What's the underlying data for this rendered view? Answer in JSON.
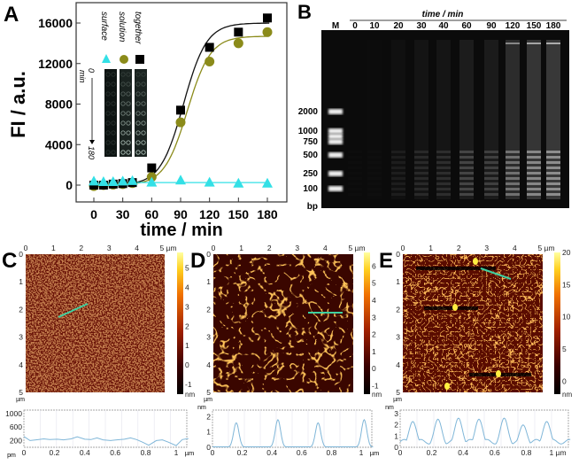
{
  "panel_labels": {
    "a": "A",
    "b": "B",
    "c": "C",
    "d": "D",
    "e": "E"
  },
  "colors": {
    "together": "#000000",
    "solution": "#8b8b1a",
    "surface": "#33e0e6",
    "profile_line": "#7fb6d8",
    "scan_line": "#3fd0a0"
  },
  "chart_data": [
    {
      "type": "scatter",
      "panel": "A",
      "xlabel": "time / min",
      "ylabel": "FI / a.u.",
      "xlim": [
        -10,
        195
      ],
      "ylim": [
        -1500,
        17500
      ],
      "xticks": [
        0,
        30,
        60,
        90,
        120,
        150,
        180
      ],
      "yticks": [
        0,
        4000,
        8000,
        12000,
        16000
      ],
      "legend_placement": "inset-top-left",
      "series": [
        {
          "name": "together",
          "marker": "square",
          "color": "#000000",
          "x": [
            0,
            10,
            20,
            30,
            40,
            60,
            90,
            120,
            150,
            180
          ],
          "y": [
            0,
            0,
            100,
            150,
            250,
            1700,
            7400,
            13600,
            15100,
            16500
          ],
          "fit": {
            "model": "sigmoid",
            "max": 16000,
            "mid": 93,
            "width": 12
          }
        },
        {
          "name": "solution",
          "marker": "circle",
          "color": "#8b8b1a",
          "x": [
            0,
            10,
            20,
            30,
            40,
            60,
            90,
            120,
            150,
            180
          ],
          "y": [
            -100,
            0,
            50,
            100,
            200,
            800,
            6200,
            12200,
            14000,
            15100
          ],
          "fit": {
            "model": "sigmoid",
            "max": 14700,
            "mid": 97,
            "width": 12
          }
        },
        {
          "name": "surface",
          "marker": "triangle",
          "color": "#33e0e6",
          "x": [
            0,
            10,
            20,
            30,
            40,
            60,
            90,
            120,
            150,
            180
          ],
          "y": [
            400,
            350,
            350,
            400,
            450,
            300,
            500,
            300,
            200,
            200
          ],
          "fit": {
            "model": "constant",
            "value": 250
          }
        }
      ],
      "inset": {
        "start_label": "0",
        "unit_label": "min",
        "end_label": "180"
      }
    },
    {
      "type": "gel",
      "panel": "B",
      "header": "time / min",
      "lanes": [
        "M",
        "0",
        "10",
        "20",
        "30",
        "40",
        "60",
        "90",
        "120",
        "150",
        "180"
      ],
      "lane_intensity": [
        1,
        0.02,
        0.03,
        0.12,
        0.2,
        0.22,
        0.38,
        0.35,
        0.7,
        0.9,
        0.95
      ],
      "ladder_labels": [
        "2000",
        "1000",
        "750",
        "500",
        "250",
        "100"
      ],
      "ladder_unit": "bp"
    },
    {
      "type": "heatmap",
      "panel": "C",
      "xticks": [
        "0",
        "1",
        "2",
        "3",
        "4",
        "5 µm"
      ],
      "yticks": [
        "0",
        "1",
        "2",
        "3",
        "4",
        "5"
      ],
      "yunit": "µm",
      "colorbar_ticks": [
        "5",
        "4",
        "3",
        "2",
        "1",
        "0",
        "-1"
      ],
      "colorbar_unit": "nm",
      "colorbar_range": [
        -1.5,
        5.8
      ],
      "profile": {
        "type": "line",
        "yunit": "pm",
        "yticks": [
          "1000",
          "600",
          "200"
        ],
        "ylim": [
          0,
          1000
        ],
        "xticks": [
          "0",
          "0.2",
          "0.4",
          "0.6",
          "0.8",
          "1"
        ],
        "xunit": "µm",
        "x": [
          0,
          0.04,
          0.08,
          0.13,
          0.17,
          0.22,
          0.26,
          0.31,
          0.35,
          0.4,
          0.44,
          0.48,
          0.52,
          0.57,
          0.61,
          0.66,
          0.7,
          0.74,
          0.78,
          0.82,
          0.87,
          0.91,
          0.95,
          1.0,
          1.04,
          1.08
        ],
        "y": [
          320,
          200,
          220,
          250,
          230,
          240,
          220,
          250,
          310,
          240,
          230,
          280,
          220,
          200,
          220,
          240,
          280,
          230,
          150,
          60,
          200,
          220,
          150,
          50,
          230,
          260
        ]
      }
    },
    {
      "type": "heatmap",
      "panel": "D",
      "xticks": [
        "0",
        "1",
        "2",
        "3",
        "4",
        "5 µm"
      ],
      "yticks": [
        "0",
        "1",
        "2",
        "3",
        "4",
        "5"
      ],
      "yunit": "µm",
      "colorbar_ticks": [
        "6",
        "5",
        "4",
        "3",
        "2",
        "1",
        "0",
        "-1"
      ],
      "colorbar_unit": "nm",
      "colorbar_range": [
        -1.5,
        6.8
      ],
      "profile": {
        "type": "line",
        "yunit": "nm",
        "yticks": [
          "2",
          "1",
          "0"
        ],
        "ylim": [
          0,
          2.2
        ],
        "xticks": [
          "0",
          "0.2",
          "0.4",
          "0.6",
          "0.8",
          "1"
        ],
        "xunit": "µm",
        "peaks": [
          [
            0.16,
            1.6
          ],
          [
            0.44,
            1.8
          ],
          [
            0.71,
            1.6
          ],
          [
            1.02,
            1.8
          ]
        ]
      }
    },
    {
      "type": "heatmap",
      "panel": "E",
      "xticks": [
        "0",
        "1",
        "2",
        "3",
        "4",
        "5 µm"
      ],
      "yticks": [
        "0",
        "1",
        "2",
        "3",
        "4",
        "5"
      ],
      "yunit": "µm",
      "colorbar_ticks": [
        "20",
        "15",
        "10",
        "5",
        "0"
      ],
      "colorbar_unit": "nm",
      "colorbar_range": [
        -2,
        20
      ],
      "profile": {
        "type": "line",
        "yunit": "nm",
        "yticks": [
          "3",
          "2",
          "1",
          "0"
        ],
        "ylim": [
          0,
          3
        ],
        "xticks": [
          "0",
          "0.2",
          "0.4",
          "0.6",
          "0.8",
          "1 µm"
        ],
        "xunit": "",
        "peaks": [
          [
            0.08,
            2.3
          ],
          [
            0.24,
            2.5
          ],
          [
            0.37,
            2.6
          ],
          [
            0.5,
            2.5
          ],
          [
            0.66,
            2.6
          ],
          [
            0.78,
            2.0
          ],
          [
            0.93,
            2.3
          ]
        ]
      }
    }
  ]
}
